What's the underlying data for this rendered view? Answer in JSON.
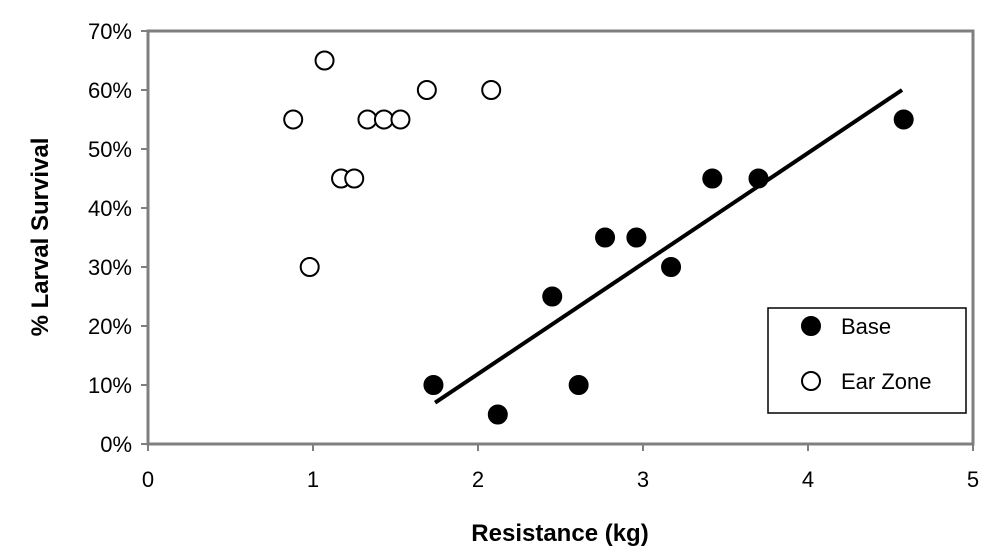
{
  "chart_data": {
    "type": "scatter",
    "title": "",
    "xlabel": "Resistance (kg)",
    "ylabel": "% Larval Survival",
    "xlim": [
      0,
      5
    ],
    "ylim": [
      0,
      70
    ],
    "x_ticks": [
      0,
      1,
      2,
      3,
      4,
      5
    ],
    "x_tick_labels": [
      "0",
      "1",
      "2",
      "3",
      "4",
      "5"
    ],
    "y_ticks": [
      0,
      10,
      20,
      30,
      40,
      50,
      60,
      70
    ],
    "y_tick_labels": [
      "0%",
      "10%",
      "20%",
      "30%",
      "40%",
      "50%",
      "60%",
      "70%"
    ],
    "grid": false,
    "legend_position": "bottom-right",
    "series": [
      {
        "name": "Base",
        "marker": "filled-circle",
        "color": "#000000",
        "points": [
          {
            "x": 1.73,
            "y": 10
          },
          {
            "x": 2.12,
            "y": 5
          },
          {
            "x": 2.45,
            "y": 25
          },
          {
            "x": 2.61,
            "y": 10
          },
          {
            "x": 2.77,
            "y": 35
          },
          {
            "x": 2.96,
            "y": 35
          },
          {
            "x": 3.17,
            "y": 30
          },
          {
            "x": 3.42,
            "y": 45
          },
          {
            "x": 3.7,
            "y": 45
          },
          {
            "x": 4.58,
            "y": 55
          }
        ]
      },
      {
        "name": "Ear Zone",
        "marker": "open-circle",
        "color": "#000000",
        "points": [
          {
            "x": 0.88,
            "y": 55
          },
          {
            "x": 0.98,
            "y": 30
          },
          {
            "x": 1.07,
            "y": 65
          },
          {
            "x": 1.17,
            "y": 45
          },
          {
            "x": 1.25,
            "y": 45
          },
          {
            "x": 1.33,
            "y": 55
          },
          {
            "x": 1.43,
            "y": 55
          },
          {
            "x": 1.53,
            "y": 55
          },
          {
            "x": 1.69,
            "y": 60
          },
          {
            "x": 2.08,
            "y": 60
          }
        ]
      }
    ],
    "trendline": {
      "series": "Base",
      "x": [
        1.74,
        4.57
      ],
      "y": [
        7,
        60
      ]
    }
  }
}
